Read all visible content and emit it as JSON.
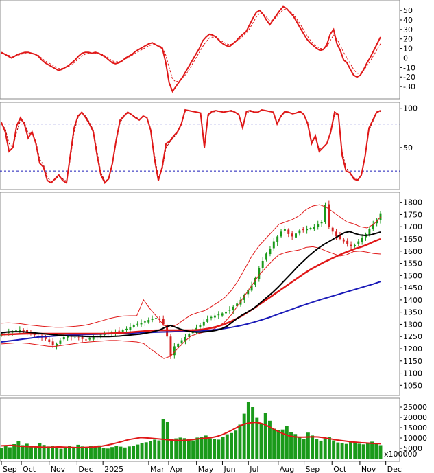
{
  "months": [
    "Sep",
    "Oct",
    "Nov",
    "Dec",
    "2025",
    "Mar",
    "Apr",
    "May",
    "Jun",
    "Jul",
    "Aug",
    "Sep",
    "Oct",
    "Nov",
    "Dec"
  ],
  "colors": {
    "price_up": "#1a9a1a",
    "price_down": "#d42020",
    "ma_fast": "#000000",
    "ma_mid": "#e01818",
    "ma_slow": "#1a1ab8",
    "bands": "#e01818",
    "osc": "#e01818",
    "signal": "#e01818",
    "volume": "#1a9a1a",
    "volume_ma": "#e01818",
    "ref_line": "#1a1ab8",
    "grid_frame": "#888888"
  },
  "chart_data": [
    {
      "type": "line",
      "panel": "macd",
      "ylim": [
        -40,
        58
      ],
      "ticks": [
        50,
        40,
        30,
        20,
        10,
        0,
        -10,
        -20,
        -30
      ],
      "ref_lines": [
        0
      ],
      "series": [
        {
          "role": "oscillator",
          "values": [
            6,
            4,
            2,
            0,
            2,
            4,
            5,
            6,
            6,
            5,
            4,
            2,
            -2,
            -5,
            -7,
            -9,
            -11,
            -13,
            -12,
            -10,
            -8,
            -5,
            -2,
            2,
            5,
            6,
            6,
            5,
            6,
            5,
            3,
            1,
            -2,
            -5,
            -6,
            -5,
            -3,
            0,
            2,
            4,
            7,
            9,
            11,
            13,
            15,
            16,
            14,
            12,
            10,
            -5,
            -26,
            -35,
            -30,
            -25,
            -20,
            -14,
            -8,
            -2,
            4,
            10,
            18,
            22,
            25,
            24,
            22,
            18,
            15,
            13,
            12,
            15,
            18,
            22,
            25,
            28,
            35,
            42,
            48,
            50,
            46,
            40,
            35,
            40,
            45,
            50,
            54,
            52,
            48,
            44,
            38,
            32,
            26,
            20,
            16,
            13,
            10,
            8,
            9,
            14,
            25,
            30,
            15,
            8,
            -2,
            -5,
            -12,
            -18,
            -20,
            -18,
            -12,
            -5,
            1,
            8,
            15,
            22
          ]
        },
        {
          "role": "signal",
          "values": [
            5,
            4,
            3,
            2,
            2,
            3,
            4,
            5,
            6,
            5,
            4,
            3,
            0,
            -3,
            -5,
            -7,
            -9,
            -11,
            -11,
            -10,
            -9,
            -7,
            -4,
            -1,
            2,
            4,
            5,
            5,
            5,
            5,
            4,
            2,
            0,
            -3,
            -4,
            -4,
            -3,
            -1,
            1,
            3,
            5,
            7,
            9,
            11,
            13,
            14,
            14,
            13,
            11,
            3,
            -10,
            -22,
            -25,
            -24,
            -21,
            -17,
            -12,
            -6,
            0,
            6,
            12,
            17,
            21,
            22,
            21,
            19,
            17,
            15,
            14,
            15,
            17,
            20,
            23,
            26,
            31,
            37,
            43,
            47,
            46,
            43,
            39,
            40,
            43,
            47,
            51,
            51,
            49,
            46,
            41,
            36,
            30,
            24,
            19,
            15,
            12,
            10,
            10,
            12,
            18,
            24,
            20,
            13,
            6,
            0,
            -6,
            -12,
            -16,
            -16,
            -13,
            -8,
            -3,
            3,
            9,
            15
          ]
        }
      ]
    },
    {
      "type": "line",
      "panel": "stochastic",
      "ylim": [
        0,
        105
      ],
      "ticks": [
        100,
        50
      ],
      "ref_lines": [
        80,
        20
      ],
      "series": [
        {
          "role": "oscillator",
          "values": [
            82,
            70,
            45,
            50,
            78,
            88,
            80,
            62,
            70,
            55,
            30,
            25,
            8,
            5,
            10,
            15,
            8,
            5,
            40,
            75,
            90,
            95,
            88,
            80,
            70,
            40,
            15,
            5,
            10,
            30,
            60,
            85,
            90,
            95,
            92,
            88,
            85,
            90,
            88,
            72,
            35,
            8,
            25,
            55,
            58,
            65,
            70,
            80,
            98,
            97,
            96,
            95,
            94,
            50,
            92,
            96,
            97,
            96,
            95,
            96,
            97,
            95,
            92,
            75,
            96,
            97,
            95,
            95,
            98,
            97,
            96,
            95,
            80,
            90,
            96,
            95,
            93,
            94,
            96,
            92,
            80,
            55,
            65,
            45,
            50,
            55,
            70,
            95,
            92,
            40,
            20,
            18,
            10,
            8,
            15,
            40,
            75,
            85,
            95,
            97
          ]
        },
        {
          "role": "signal",
          "values": [
            80,
            74,
            55,
            50,
            70,
            85,
            82,
            68,
            68,
            58,
            35,
            28,
            12,
            7,
            9,
            13,
            10,
            7,
            35,
            70,
            88,
            94,
            90,
            82,
            72,
            45,
            18,
            7,
            10,
            28,
            58,
            82,
            89,
            94,
            92,
            89,
            86,
            89,
            88,
            74,
            40,
            12,
            22,
            50,
            57,
            63,
            69,
            79,
            96,
            97,
            96,
            95,
            94,
            55,
            90,
            95,
            96,
            96,
            95,
            96,
            96,
            95,
            92,
            78,
            94,
            96,
            95,
            95,
            97,
            97,
            96,
            95,
            82,
            89,
            95,
            95,
            93,
            94,
            95,
            92,
            82,
            58,
            63,
            48,
            50,
            55,
            68,
            92,
            92,
            45,
            24,
            19,
            12,
            9,
            14,
            38,
            72,
            83,
            94,
            96
          ]
        }
      ]
    },
    {
      "type": "candlestick",
      "panel": "price",
      "ylim": [
        1020,
        1830
      ],
      "ticks": [
        1800,
        1750,
        1700,
        1650,
        1600,
        1550,
        1500,
        1450,
        1400,
        1350,
        1300,
        1250,
        1200,
        1150,
        1100,
        1050
      ],
      "closes": [
        1258,
        1262,
        1268,
        1270,
        1275,
        1278,
        1272,
        1265,
        1260,
        1256,
        1250,
        1246,
        1240,
        1228,
        1215,
        1220,
        1235,
        1248,
        1252,
        1250,
        1246,
        1244,
        1240,
        1236,
        1242,
        1248,
        1252,
        1258,
        1262,
        1265,
        1268,
        1270,
        1272,
        1276,
        1282,
        1290,
        1296,
        1302,
        1306,
        1312,
        1318,
        1322,
        1326,
        1320,
        1300,
        1250,
        1170,
        1210,
        1220,
        1235,
        1248,
        1260,
        1272,
        1285,
        1298,
        1310,
        1322,
        1330,
        1336,
        1340,
        1345,
        1352,
        1360,
        1372,
        1385,
        1400,
        1420,
        1440,
        1460,
        1490,
        1530,
        1560,
        1590,
        1610,
        1640,
        1660,
        1680,
        1690,
        1670,
        1660,
        1672,
        1685,
        1688,
        1690,
        1695,
        1700,
        1710,
        1720,
        1790,
        1700,
        1680,
        1660,
        1650,
        1640,
        1630,
        1620,
        1625,
        1640,
        1655,
        1670,
        1690,
        1710,
        1730,
        1755
      ],
      "series": [
        {
          "role": "ma_fast",
          "values": [
            1265,
            1268,
            1270,
            1270,
            1270,
            1268,
            1266,
            1264,
            1262,
            1260,
            1258,
            1256,
            1255,
            1253,
            1252,
            1252,
            1251,
            1250,
            1250,
            1250,
            1250,
            1250,
            1251,
            1252,
            1254,
            1256,
            1258,
            1260,
            1263,
            1267,
            1272,
            1278,
            1288,
            1296,
            1288,
            1280,
            1274,
            1270,
            1268,
            1268,
            1270,
            1272,
            1276,
            1282,
            1292,
            1308,
            1324,
            1338,
            1350,
            1362,
            1378,
            1396,
            1414,
            1432,
            1452,
            1474,
            1496,
            1518,
            1540,
            1560,
            1580,
            1598,
            1614,
            1628,
            1640,
            1652,
            1664,
            1676,
            1680,
            1672,
            1666,
            1664,
            1666,
            1672,
            1678
          ]
        },
        {
          "role": "ma_mid",
          "values": [
            1258,
            1259,
            1260,
            1261,
            1262,
            1262,
            1262,
            1262,
            1262,
            1262,
            1262,
            1262,
            1262,
            1262,
            1262,
            1262,
            1262,
            1263,
            1264,
            1265,
            1267,
            1269,
            1271,
            1273,
            1275,
            1276,
            1276,
            1276,
            1276,
            1276,
            1276,
            1277,
            1280,
            1284,
            1290,
            1298,
            1308,
            1320,
            1334,
            1350,
            1366,
            1384,
            1402,
            1420,
            1438,
            1456,
            1474,
            1492,
            1510,
            1526,
            1540,
            1554,
            1566,
            1578,
            1590,
            1600,
            1610,
            1618,
            1628,
            1640,
            1650
          ]
        },
        {
          "role": "ma_slow",
          "values": [
            1228,
            1232,
            1236,
            1240,
            1244,
            1248,
            1250,
            1252,
            1254,
            1256,
            1257,
            1258,
            1259,
            1260,
            1261,
            1262,
            1263,
            1264,
            1265,
            1266,
            1267,
            1268,
            1269,
            1270,
            1271,
            1272,
            1273,
            1274,
            1276,
            1279,
            1283,
            1288,
            1294,
            1301,
            1309,
            1318,
            1328,
            1339,
            1350,
            1361,
            1372,
            1382,
            1392,
            1402,
            1411,
            1420,
            1429,
            1438,
            1447,
            1456,
            1465,
            1475
          ]
        },
        {
          "role": "bb_upper",
          "values": [
            1305,
            1306,
            1305,
            1302,
            1298,
            1295,
            1292,
            1290,
            1288,
            1288,
            1290,
            1292,
            1295,
            1300,
            1308,
            1316,
            1324,
            1330,
            1334,
            1335,
            1335,
            1400,
            1362,
            1330,
            1296,
            1288,
            1300,
            1320,
            1338,
            1348,
            1356,
            1372,
            1390,
            1410,
            1440,
            1480,
            1530,
            1580,
            1620,
            1650,
            1680,
            1710,
            1720,
            1730,
            1745,
            1770,
            1785,
            1790,
            1780,
            1760,
            1740,
            1720,
            1712,
            1700,
            1695,
            1710,
            1740
          ]
        },
        {
          "role": "bb_lower",
          "values": [
            1220,
            1222,
            1224,
            1224,
            1222,
            1218,
            1214,
            1210,
            1210,
            1214,
            1218,
            1222,
            1226,
            1228,
            1230,
            1232,
            1234,
            1234,
            1232,
            1230,
            1228,
            1222,
            1200,
            1180,
            1160,
            1170,
            1200,
            1228,
            1252,
            1262,
            1268,
            1276,
            1290,
            1310,
            1340,
            1380,
            1420,
            1460,
            1500,
            1530,
            1560,
            1585,
            1595,
            1600,
            1605,
            1615,
            1618,
            1612,
            1600,
            1590,
            1580,
            1585,
            1598,
            1600,
            1596,
            1590,
            1588
          ]
        }
      ]
    },
    {
      "type": "bar",
      "panel": "volume",
      "multiplier_label": "x100000",
      "ylim": [
        0,
        28000
      ],
      "ticks": [
        25000,
        20000,
        15000,
        10000,
        5000
      ],
      "values": [
        5000,
        6000,
        5500,
        7000,
        8500,
        6500,
        7200,
        5800,
        6100,
        7400,
        6600,
        5900,
        6300,
        5200,
        4800,
        5600,
        6100,
        5400,
        6700,
        5900,
        5500,
        6100,
        5800,
        6400,
        5200,
        4900,
        5600,
        6200,
        5800,
        5400,
        5900,
        6300,
        6800,
        7400,
        7900,
        8600,
        9200,
        8800,
        19000,
        18000,
        9500,
        9800,
        10200,
        9900,
        9600,
        8800,
        10200,
        10600,
        11200,
        9800,
        9600,
        9200,
        10400,
        11800,
        12400,
        13600,
        16500,
        21800,
        27500,
        25000,
        19800,
        17200,
        22000,
        18400,
        14500,
        13800,
        14100,
        15800,
        12800,
        11900,
        10400,
        9600,
        12600,
        11200,
        9600,
        8700,
        9800,
        10400,
        8800,
        7800,
        7400,
        7100,
        8500,
        7900,
        7200,
        6900,
        7500,
        8200,
        7100,
        6500
      ],
      "series": [
        {
          "role": "volume_ma",
          "values": [
            6200,
            6300,
            6400,
            6200,
            6000,
            5900,
            5800,
            5700,
            5600,
            5500,
            5500,
            5600,
            5700,
            5600,
            5500,
            5400,
            5300,
            5400,
            5500,
            5600,
            5800,
            6100,
            6500,
            7000,
            7600,
            8200,
            8900,
            9400,
            9800,
            10200,
            10100,
            9900,
            9700,
            9500,
            9300,
            9100,
            8900,
            8800,
            8800,
            9000,
            9300,
            9600,
            9800,
            10000,
            10300,
            10800,
            11600,
            12600,
            13800,
            15000,
            16200,
            17000,
            17400,
            17600,
            17200,
            16400,
            15200,
            14000,
            12800,
            11800,
            11000,
            10600,
            10400,
            10400,
            10500,
            10600,
            10500,
            10200,
            9800,
            9400,
            9000,
            8700,
            8400,
            8100,
            7900,
            7700,
            7600,
            7400,
            7300,
            7200
          ]
        }
      ]
    }
  ]
}
